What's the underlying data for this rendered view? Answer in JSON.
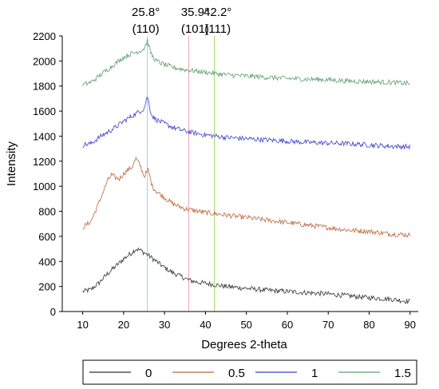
{
  "chart_data": {
    "type": "line",
    "xlabel": "Degrees 2-theta",
    "ylabel": "Intensity",
    "xlim": [
      5,
      92
    ],
    "ylim": [
      0,
      2200
    ],
    "xticks": [
      10,
      20,
      30,
      40,
      50,
      60,
      70,
      80,
      90
    ],
    "yticks": [
      0,
      200,
      400,
      600,
      800,
      1000,
      1200,
      1400,
      1600,
      1800,
      2000,
      2200
    ],
    "grid": false,
    "legend_position": "bottom",
    "reference_lines": [
      {
        "x": 25.8,
        "angle": "25.8°",
        "plane": "(110)",
        "color": "#7fd6f0"
      },
      {
        "x": 35.9,
        "angle": "35.9°",
        "plane": "(101)",
        "color": "#f0a0b8"
      },
      {
        "x": 42.2,
        "angle": "42.2°",
        "plane": "(111)",
        "color": "#9ed35a"
      }
    ],
    "series": [
      {
        "name": "0",
        "color": "#333333",
        "x": [
          10,
          12,
          14,
          16,
          18,
          20,
          22,
          23,
          24,
          25,
          26,
          28,
          30,
          32,
          34,
          36,
          38,
          40,
          42,
          45,
          50,
          55,
          60,
          65,
          70,
          75,
          80,
          85,
          90
        ],
        "y": [
          160,
          175,
          230,
          300,
          360,
          420,
          470,
          500,
          490,
          470,
          450,
          400,
          350,
          310,
          280,
          250,
          235,
          225,
          215,
          200,
          185,
          170,
          160,
          150,
          140,
          125,
          110,
          100,
          80
        ]
      },
      {
        "name": "0.5",
        "color": "#c0663a",
        "x": [
          10,
          12,
          14,
          16,
          17,
          18,
          19,
          20,
          21,
          22,
          23,
          24,
          25,
          26,
          27,
          28,
          30,
          32,
          35,
          40,
          45,
          50,
          55,
          60,
          65,
          70,
          75,
          80,
          85,
          90
        ],
        "y": [
          670,
          720,
          870,
          1040,
          1090,
          1070,
          1060,
          1100,
          1130,
          1150,
          1220,
          1170,
          1080,
          1130,
          1000,
          960,
          910,
          860,
          820,
          790,
          770,
          750,
          730,
          710,
          690,
          670,
          650,
          640,
          620,
          610
        ]
      },
      {
        "name": "1",
        "color": "#3d3dcf",
        "x": [
          10,
          12,
          14,
          16,
          18,
          20,
          22,
          24,
          25,
          25.8,
          26.5,
          27,
          28,
          30,
          32,
          35,
          40,
          45,
          50,
          55,
          60,
          65,
          70,
          75,
          80,
          85,
          90
        ],
        "y": [
          1330,
          1340,
          1390,
          1430,
          1470,
          1520,
          1560,
          1600,
          1620,
          1720,
          1610,
          1560,
          1530,
          1500,
          1470,
          1440,
          1410,
          1390,
          1380,
          1370,
          1360,
          1350,
          1345,
          1340,
          1330,
          1320,
          1315
        ]
      },
      {
        "name": "1.5",
        "color": "#5f9f6f",
        "x": [
          10,
          12,
          14,
          16,
          18,
          20,
          22,
          24,
          25,
          25.8,
          26.5,
          27,
          28,
          30,
          32,
          35,
          40,
          45,
          50,
          55,
          60,
          65,
          70,
          75,
          80,
          85,
          90
        ],
        "y": [
          1810,
          1830,
          1880,
          1930,
          1980,
          2030,
          2060,
          2080,
          2100,
          2160,
          2080,
          2040,
          2000,
          1970,
          1950,
          1930,
          1910,
          1890,
          1880,
          1870,
          1860,
          1855,
          1850,
          1840,
          1835,
          1830,
          1820
        ]
      }
    ]
  }
}
